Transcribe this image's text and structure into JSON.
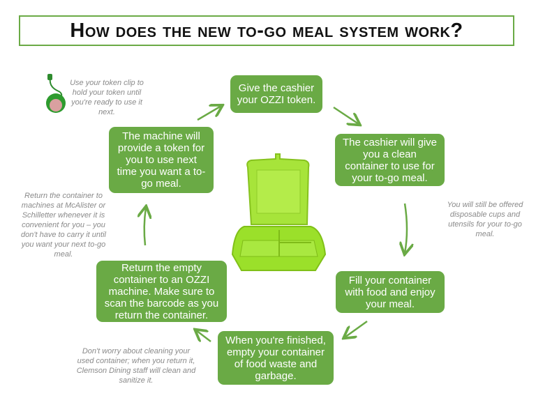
{
  "title": "How does the new to-go meal system work?",
  "steps": [
    "Give the cashier your OZZI token.",
    "The cashier will give you a clean container to use for your to-go meal.",
    "Fill your container with food and enjoy your meal.",
    "When you're finished, empty your container of food waste and garbage.",
    "Return the empty container to an OZZI machine. Make sure to scan the barcode as you return the container.",
    "The machine will provide a token for you to use next time you want a to-go meal."
  ],
  "notes": {
    "token_clip": "Use your token clip to hold your token until you're ready to use it next.",
    "return_anytime": "Return the container to machines at McAlister or Schilletter whenever it is convenient for you – you don't have to carry it until you want your next to-go meal.",
    "disposables": "You will still be offered disposable cups and utensils for your to-go meal.",
    "cleaning": "Don't worry about cleaning your used container; when you return it, Clemson Dining staff will clean and sanitize it."
  },
  "colors": {
    "accent": "#6aaa45",
    "container": "#9be02a",
    "note_text": "#8a8a8a"
  }
}
